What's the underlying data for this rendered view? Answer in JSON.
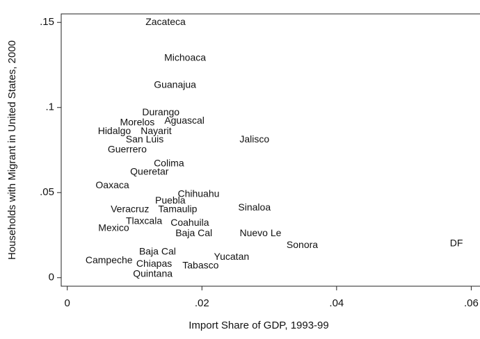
{
  "chart_data": {
    "type": "scatter",
    "x_label": "Import Share of GDP, 1993-99",
    "y_label": "Households with Migrant in United States, 2000",
    "labels": [
      "Zacateca",
      "Michoaca",
      "Guanajua",
      "Durango",
      "Aguascal",
      "Morelos",
      "Hidalgo",
      "Nayarit",
      "San Luis",
      "Jalisco",
      "Guerrero",
      "Colima",
      "Queretar",
      "Oaxaca",
      "Chihuahu",
      "Puebla",
      "Veracruz",
      "Tamaulip",
      "Sinaloa",
      "Tlaxcala",
      "Coahuila",
      "Mexico",
      "Baja Cal",
      "Nuevo Le",
      "Sonora",
      "DF",
      "Baja Cal",
      "Yucatan",
      "Campeche",
      "Chiapas",
      "Tabasco",
      "Quintana"
    ],
    "x": [
      0.0146,
      0.0175,
      0.016,
      0.0139,
      0.0174,
      0.0104,
      0.007,
      0.0132,
      0.0115,
      0.0278,
      0.0089,
      0.0151,
      0.0122,
      0.0067,
      0.0195,
      0.0153,
      0.0093,
      0.0164,
      0.0278,
      0.0114,
      0.0182,
      0.0069,
      0.0188,
      0.0287,
      0.0349,
      0.0578,
      0.0134,
      0.0244,
      0.0062,
      0.0129,
      0.0198,
      0.0127
    ],
    "y": [
      0.15,
      0.129,
      0.113,
      0.097,
      0.092,
      0.091,
      0.086,
      0.086,
      0.081,
      0.081,
      0.075,
      0.067,
      0.062,
      0.054,
      0.049,
      0.045,
      0.04,
      0.04,
      0.041,
      0.033,
      0.032,
      0.029,
      0.026,
      0.026,
      0.019,
      0.02,
      0.015,
      0.012,
      0.01,
      0.008,
      0.007,
      0.002
    ],
    "xlim": [
      -0.0009,
      0.0613
    ],
    "ylim": [
      -0.005,
      0.155
    ],
    "xticks": [
      0,
      {
        "value": 0.02,
        "label": ".02"
      },
      {
        "value": 0.04,
        "label": ".04"
      },
      {
        "value": 0.06,
        "label": ".06"
      }
    ],
    "yticks": [
      0,
      {
        "value": 0.05,
        "label": ".05"
      },
      {
        "value": 0.1,
        "label": ".1"
      },
      {
        "value": 0.15,
        "label": ".15"
      }
    ]
  }
}
